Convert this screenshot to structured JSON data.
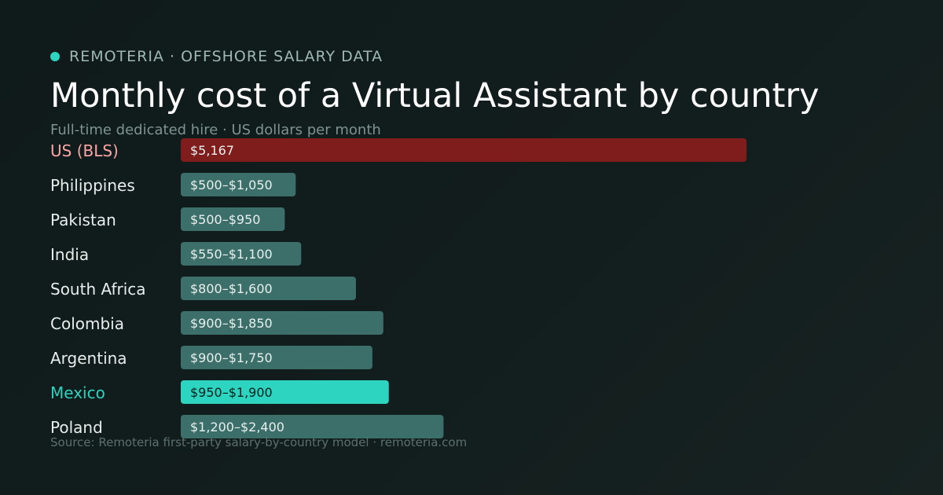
{
  "header": {
    "brand": "REMOTERIA · OFFSHORE SALARY DATA",
    "title": "Monthly cost of a Virtual Assistant by country",
    "subtitle": "Full-time dedicated hire · US dollars per month"
  },
  "footer": {
    "source": "Source: Remoteria first-party salary-by-country model · remoteria.com"
  },
  "colors": {
    "accent": "#2dd4bf",
    "us_bar": "#7f1d1d",
    "us_label": "#fca5a5",
    "default_bar": "#3d6f6a",
    "highlight_bar": "#2dd4bf",
    "highlight_label": "#2dd4bf",
    "default_label": "#e8eeec"
  },
  "chart_data": {
    "type": "bar",
    "orientation": "horizontal",
    "title": "Monthly cost of a Virtual Assistant by country",
    "subtitle": "Full-time dedicated hire · US dollars per month",
    "xlabel": "",
    "ylabel": "",
    "grid": false,
    "xlim": [
      0,
      5167
    ],
    "categories": [
      "US (BLS)",
      "Philippines",
      "Pakistan",
      "India",
      "South Africa",
      "Colombia",
      "Argentina",
      "Mexico",
      "Poland"
    ],
    "low": [
      5167,
      500,
      500,
      550,
      800,
      900,
      900,
      950,
      1200
    ],
    "high": [
      5167,
      1050,
      950,
      1100,
      1600,
      1850,
      1750,
      1900,
      2400
    ],
    "labels": [
      "$5,167",
      "$500–$1,050",
      "$500–$950",
      "$550–$1,100",
      "$800–$1,600",
      "$900–$1,850",
      "$900–$1,750",
      "$950–$1,900",
      "$1,200–$2,400"
    ],
    "highlight": [
      "US (BLS)",
      "Mexico"
    ]
  }
}
